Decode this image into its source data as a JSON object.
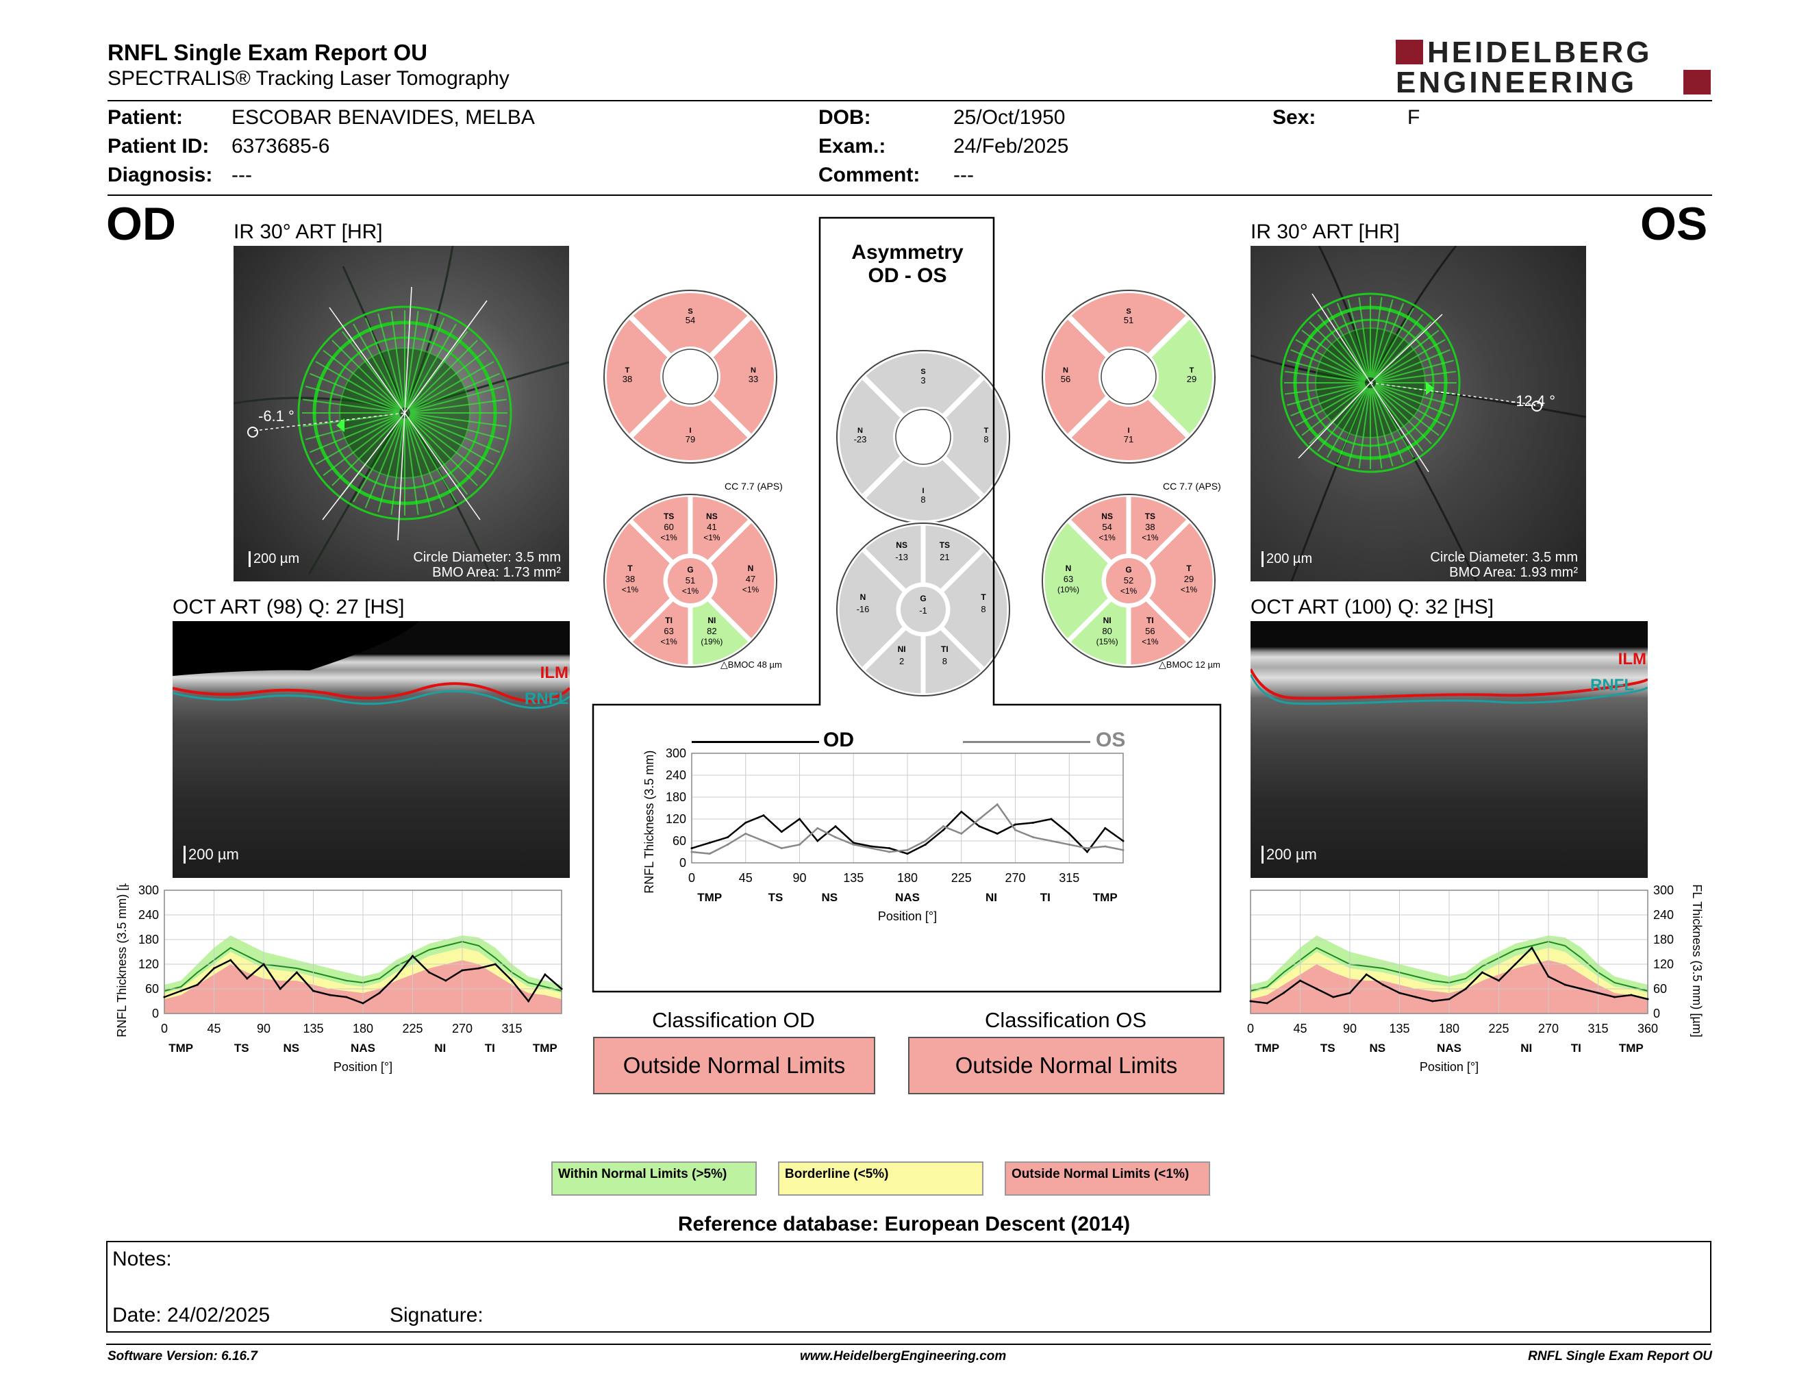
{
  "header": {
    "title": "RNFL Single Exam Report OU",
    "subtitle": "SPECTRALIS® Tracking Laser Tomography",
    "logo_line1": "HEIDELBERG",
    "logo_line2": "ENGINEERING"
  },
  "patient": {
    "patient_label": "Patient:",
    "patient_value": "ESCOBAR BENAVIDES, MELBA",
    "id_label": "Patient ID:",
    "id_value": "6373685-6",
    "diag_label": "Diagnosis:",
    "diag_value": "---",
    "dob_label": "DOB:",
    "dob_value": "25/Oct/1950",
    "exam_label": "Exam.:",
    "exam_value": "24/Feb/2025",
    "comment_label": "Comment:",
    "comment_value": "---",
    "sex_label": "Sex:",
    "sex_value": "F"
  },
  "od": {
    "eye": "OD",
    "ir_title": "IR 30° ART [HR]",
    "angle": "-6.1 °",
    "circle_diameter": "Circle Diameter: 3.5 mm",
    "bmo_area": "BMO Area: 1.73 mm²",
    "scale": "200 µm",
    "oct_title": "OCT ART (98) Q: 27 [HS]",
    "ilm": "ILM",
    "rnfl": "RNFL",
    "classification_title": "Classification OD",
    "classification": "Outside Normal Limits",
    "cc": "CC 7.7 (APS)",
    "bmoc": "BMOC 48 µm",
    "quad": {
      "S": "54",
      "N": "33",
      "I": "79",
      "T": "38"
    },
    "sectors": {
      "TS": [
        "60",
        "<1%"
      ],
      "NS": [
        "41",
        "<1%"
      ],
      "N": [
        "47",
        "<1%"
      ],
      "NI": [
        "82",
        "(19%)"
      ],
      "TI": [
        "63",
        "<1%"
      ],
      "T": [
        "38",
        "<1%"
      ],
      "G": [
        "51",
        "<1%"
      ]
    },
    "colors": {
      "TS": "#f4a6a1",
      "NS": "#f4a6a1",
      "N": "#f4a6a1",
      "NI": "#bdf2a0",
      "TI": "#f4a6a1",
      "T": "#f4a6a1",
      "G": "#f4a6a1"
    }
  },
  "os": {
    "eye": "OS",
    "ir_title": "IR 30° ART [HR]",
    "angle": "-12.4 °",
    "circle_diameter": "Circle Diameter: 3.5 mm",
    "bmo_area": "BMO Area: 1.93 mm²",
    "scale": "200 µm",
    "oct_title": "OCT ART (100) Q: 32 [HS]",
    "ilm": "ILM",
    "rnfl": "RNFL",
    "classification_title": "Classification OS",
    "classification": "Outside Normal Limits",
    "cc": "CC 7.7 (APS)",
    "bmoc": "BMOC 12 µm",
    "quad": {
      "S": "51",
      "N": "56",
      "I": "71",
      "T": "29"
    },
    "sectors": {
      "NS": [
        "54",
        "<1%"
      ],
      "TS": [
        "38",
        "<1%"
      ],
      "T": [
        "29",
        "<1%"
      ],
      "TI": [
        "56",
        "<1%"
      ],
      "NI": [
        "80",
        "(15%)"
      ],
      "N": [
        "63",
        "(10%)"
      ],
      "G": [
        "52",
        "<1%"
      ]
    },
    "colors": {
      "NS": "#f4a6a1",
      "TS": "#f4a6a1",
      "T": "#f4a6a1",
      "TI": "#f4a6a1",
      "NI": "#bdf2a0",
      "N": "#bdf2a0",
      "G": "#f4a6a1"
    }
  },
  "asymmetry": {
    "title1": "Asymmetry",
    "title2": "OD - OS",
    "quad": {
      "S": "3",
      "T": "8",
      "I": "8",
      "N": "-23"
    },
    "sectors": {
      "NS": "-13",
      "TS": "21",
      "T": "8",
      "TI": "8",
      "NI": "2",
      "N": "-16",
      "G": "-1"
    }
  },
  "colors": {
    "wnl": "#bdf2a0",
    "bl": "#fbf9a2",
    "onl": "#f4a6a1",
    "od_line": "#000000",
    "os_line": "#888888"
  },
  "legend": {
    "within": "Within Normal Limits (>5%)",
    "borderline": "Borderline (<5%)",
    "outside": "Outside Normal Limits (<1%)"
  },
  "reference": "Reference database: European Descent (2014)",
  "notes": {
    "label": "Notes:",
    "date": "Date: 24/02/2025",
    "signature": "Signature:"
  },
  "footer": {
    "left": "Software Version: 6.16.7",
    "center": "www.HeidelbergEngineering.com",
    "right": "RNFL Single Exam Report OU"
  },
  "chart_data": [
    {
      "type": "line",
      "name": "od_profile",
      "xlabel": "Position [°]",
      "ylabel": "RNFL Thickness (3.5 mm) [µm]",
      "xlim": [
        0,
        360
      ],
      "ylim": [
        0,
        300
      ],
      "xticks": [
        "0",
        "45",
        "90",
        "135",
        "180",
        "225",
        "270",
        "315"
      ],
      "yticks": [
        "0",
        "60",
        "120",
        "180",
        "240",
        "300"
      ],
      "sector_labels": [
        "TMP",
        "TS",
        "NS",
        "NAS",
        "NI",
        "TI",
        "TMP"
      ],
      "x": [
        0,
        15,
        30,
        45,
        60,
        75,
        90,
        105,
        120,
        135,
        150,
        165,
        180,
        195,
        210,
        225,
        240,
        255,
        270,
        285,
        300,
        315,
        330,
        345,
        360
      ],
      "series": [
        {
          "values": [
            40,
            55,
            70,
            110,
            130,
            85,
            120,
            60,
            100,
            55,
            45,
            40,
            25,
            50,
            90,
            140,
            100,
            80,
            105,
            110,
            120,
            80,
            30,
            95,
            60
          ]
        }
      ]
    },
    {
      "type": "line",
      "name": "comparison",
      "xlabel": "Position [°]",
      "ylabel": "RNFL Thickness (3.5 mm) [µm]",
      "xlim": [
        0,
        360
      ],
      "ylim": [
        0,
        300
      ],
      "xticks": [
        "0",
        "45",
        "90",
        "135",
        "180",
        "225",
        "270",
        "315"
      ],
      "yticks": [
        "0",
        "60",
        "120",
        "180",
        "240",
        "300"
      ],
      "sector_labels": [
        "TMP",
        "TS",
        "NS",
        "NAS",
        "NI",
        "TI",
        "TMP"
      ],
      "legend": [
        "OD",
        "OS"
      ],
      "x": [
        0,
        15,
        30,
        45,
        60,
        75,
        90,
        105,
        120,
        135,
        150,
        165,
        180,
        195,
        210,
        225,
        240,
        255,
        270,
        285,
        300,
        315,
        330,
        345,
        360
      ],
      "series": [
        {
          "name": "OD",
          "values": [
            40,
            55,
            70,
            110,
            130,
            85,
            120,
            60,
            100,
            55,
            45,
            40,
            25,
            50,
            90,
            140,
            100,
            80,
            105,
            110,
            120,
            80,
            30,
            95,
            60
          ]
        },
        {
          "name": "OS",
          "values": [
            30,
            25,
            50,
            80,
            60,
            40,
            50,
            95,
            70,
            50,
            40,
            30,
            35,
            60,
            100,
            80,
            120,
            160,
            90,
            70,
            60,
            50,
            40,
            45,
            35
          ]
        }
      ]
    },
    {
      "type": "line",
      "name": "os_profile",
      "xlabel": "Position [°]",
      "ylabel": "RNFL Thickness (3.5 mm) [µm]",
      "xlim": [
        0,
        360
      ],
      "ylim": [
        0,
        300
      ],
      "xticks": [
        "0",
        "45",
        "90",
        "135",
        "180",
        "225",
        "270",
        "315",
        "360"
      ],
      "yticks": [
        "0",
        "60",
        "120",
        "180",
        "240",
        "300"
      ],
      "sector_labels": [
        "TMP",
        "TS",
        "NS",
        "NAS",
        "NI",
        "TI",
        "TMP"
      ],
      "x": [
        0,
        15,
        30,
        45,
        60,
        75,
        90,
        105,
        120,
        135,
        150,
        165,
        180,
        195,
        210,
        225,
        240,
        255,
        270,
        285,
        300,
        315,
        330,
        345,
        360
      ],
      "series": [
        {
          "values": [
            30,
            25,
            50,
            80,
            60,
            40,
            50,
            95,
            70,
            50,
            40,
            30,
            35,
            60,
            100,
            80,
            120,
            160,
            90,
            70,
            60,
            50,
            40,
            45,
            35
          ]
        }
      ]
    }
  ]
}
